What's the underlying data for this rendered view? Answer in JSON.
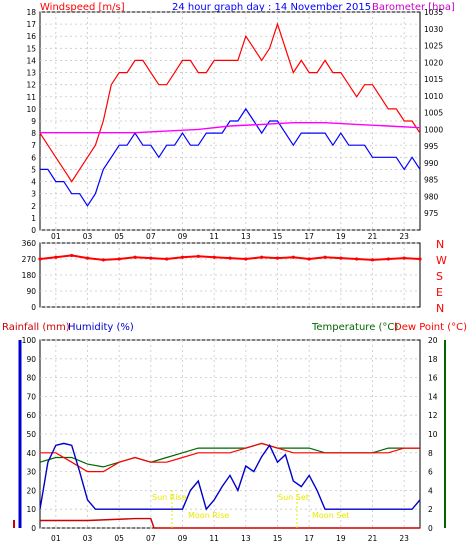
{
  "header": {
    "title": "24 hour graph day : 14 November 2015",
    "left_label": "Windspeed [m/s]",
    "right_label": "Barometer [hpa]"
  },
  "bottom_header": {
    "rainfall": "Rainfall (mm)",
    "humidity": "Humidity (%)",
    "temperature": "Temperature (°C)",
    "dewpoint": "Dew Point (°C)"
  },
  "compass": [
    "N",
    "W",
    "S",
    "E",
    "N"
  ],
  "annotations": {
    "sun_rise": "Sun Rise",
    "moon_rise": "Moon Rise",
    "sun_set": "Sun Set",
    "moon_set": "Moon Set"
  },
  "colors": {
    "wind": "#ff0000",
    "gust_avg": "#0000ff",
    "barometer": "#ff00ff",
    "direction": "#ff0000",
    "rain": "#cc0000",
    "humidity": "#0000cc",
    "temperature": "#006600",
    "dewpoint": "#ff0000",
    "note": "#e8e800"
  },
  "chart_data": [
    {
      "type": "line",
      "title": "24 hour graph day : 14 November 2015",
      "ylabel": "Windspeed [m/s]",
      "y2label": "Barometer [hpa]",
      "x_ticks": [
        "01",
        "03",
        "05",
        "07",
        "09",
        "11",
        "13",
        "15",
        "17",
        "19",
        "21",
        "23"
      ],
      "xlim": [
        0,
        24
      ],
      "ylim": [
        0,
        18
      ],
      "y_ticks": [
        0,
        1,
        2,
        3,
        4,
        5,
        6,
        7,
        8,
        9,
        10,
        11,
        12,
        13,
        14,
        15,
        16,
        17,
        18
      ],
      "y2lim": [
        970,
        1035
      ],
      "y2_ticks": [
        975,
        980,
        985,
        990,
        995,
        1000,
        1005,
        1010,
        1015,
        1020,
        1025,
        1030,
        1035
      ],
      "series": [
        {
          "key": "gust",
          "x": [
            0,
            0.5,
            1,
            1.5,
            2,
            2.5,
            3,
            3.5,
            4,
            4.5,
            5,
            5.5,
            6,
            6.5,
            7,
            7.5,
            8,
            8.5,
            9,
            9.5,
            10,
            10.5,
            11,
            11.5,
            12,
            12.5,
            13,
            13.5,
            14,
            14.5,
            15,
            15.5,
            16,
            16.5,
            17,
            17.5,
            18,
            18.5,
            19,
            19.5,
            20,
            20.5,
            21,
            21.5,
            22,
            22.5,
            23,
            23.5,
            24
          ],
          "y": [
            8,
            7,
            6,
            5,
            4,
            5,
            6,
            7,
            9,
            12,
            13,
            13,
            14,
            14,
            13,
            12,
            12,
            13,
            14,
            14,
            13,
            13,
            14,
            14,
            14,
            14,
            16,
            15,
            14,
            15,
            17,
            15,
            13,
            14,
            13,
            13,
            14,
            13,
            13,
            12,
            11,
            12,
            12,
            11,
            10,
            10,
            9,
            9,
            8
          ]
        },
        {
          "key": "average",
          "x": [
            0,
            0.5,
            1,
            1.5,
            2,
            2.5,
            3,
            3.5,
            4,
            4.5,
            5,
            5.5,
            6,
            6.5,
            7,
            7.5,
            8,
            8.5,
            9,
            9.5,
            10,
            10.5,
            11,
            11.5,
            12,
            12.5,
            13,
            13.5,
            14,
            14.5,
            15,
            15.5,
            16,
            16.5,
            17,
            17.5,
            18,
            18.5,
            19,
            19.5,
            20,
            20.5,
            21,
            21.5,
            22,
            22.5,
            23,
            23.5,
            24
          ],
          "y": [
            5,
            5,
            4,
            4,
            3,
            3,
            2,
            3,
            5,
            6,
            7,
            7,
            8,
            7,
            7,
            6,
            7,
            7,
            8,
            7,
            7,
            8,
            8,
            8,
            9,
            9,
            10,
            9,
            8,
            9,
            9,
            8,
            7,
            8,
            8,
            8,
            8,
            7,
            8,
            7,
            7,
            7,
            6,
            6,
            6,
            6,
            5,
            6,
            5
          ]
        },
        {
          "key": "barometer",
          "axis": "y2",
          "x": [
            0,
            2,
            4,
            6,
            8,
            10,
            12,
            14,
            16,
            18,
            20,
            22,
            24
          ],
          "y": [
            999,
            999,
            999,
            999,
            999.5,
            1000,
            1001,
            1001.5,
            1002,
            1002,
            1001.5,
            1001,
            1000.5
          ]
        }
      ]
    },
    {
      "type": "scatter",
      "title": "",
      "ylabel": "",
      "xlim": [
        0,
        24
      ],
      "ylim": [
        0,
        360
      ],
      "y_ticks": [
        0,
        90,
        180,
        270,
        360
      ],
      "series": [
        {
          "key": "direction",
          "x": [
            0,
            1,
            2,
            3,
            4,
            5,
            6,
            7,
            8,
            9,
            10,
            11,
            12,
            13,
            14,
            15,
            16,
            17,
            18,
            19,
            20,
            21,
            22,
            23,
            24
          ],
          "y": [
            270,
            280,
            290,
            275,
            265,
            270,
            280,
            275,
            270,
            280,
            285,
            280,
            275,
            270,
            280,
            275,
            280,
            270,
            280,
            275,
            270,
            265,
            270,
            275,
            270
          ]
        }
      ]
    },
    {
      "type": "line",
      "title": "",
      "xlim": [
        0,
        24
      ],
      "ylim": [
        0,
        100
      ],
      "y_ticks": [
        0,
        10,
        20,
        30,
        40,
        50,
        60,
        70,
        80,
        90,
        100
      ],
      "y2lim": [
        0,
        20
      ],
      "y2_ticks": [
        0,
        2,
        4,
        6,
        8,
        10,
        12,
        14,
        16,
        18,
        20
      ],
      "series": [
        {
          "key": "humidity",
          "x": [
            0,
            0.5,
            1,
            1.5,
            2,
            2.5,
            3,
            3.5,
            4,
            4.5,
            5,
            5.5,
            6,
            6.5,
            7,
            7.5,
            8,
            8.5,
            9,
            9.5,
            10,
            10.5,
            11,
            11.5,
            12,
            12.5,
            13,
            13.5,
            14,
            14.5,
            15,
            15.5,
            16,
            16.5,
            17,
            17.5,
            18,
            18.5,
            19,
            19.5,
            20,
            20.5,
            21,
            21.5,
            22,
            22.5,
            23,
            23.5,
            24
          ],
          "y": [
            10,
            35,
            44,
            45,
            44,
            30,
            15,
            10,
            10,
            10,
            10,
            10,
            10,
            10,
            10,
            10,
            10,
            10,
            10,
            20,
            25,
            10,
            15,
            22,
            28,
            20,
            33,
            30,
            38,
            44,
            35,
            39,
            25,
            22,
            28,
            20,
            10,
            10,
            10,
            10,
            10,
            10,
            10,
            10,
            10,
            10,
            10,
            10,
            15
          ]
        },
        {
          "key": "temperature",
          "axis": "y2",
          "x": [
            0,
            1,
            2,
            3,
            4,
            5,
            6,
            7,
            8,
            9,
            10,
            11,
            12,
            13,
            14,
            15,
            16,
            17,
            18,
            19,
            20,
            21,
            22,
            23,
            24
          ],
          "y": [
            7,
            7.5,
            7.5,
            6.8,
            6.5,
            7,
            7.5,
            7,
            7.5,
            8,
            8.5,
            8.5,
            8.5,
            8.5,
            9,
            8.5,
            8.5,
            8.5,
            8,
            8,
            8,
            8,
            8.5,
            8.5,
            8.5
          ]
        },
        {
          "key": "dewpoint",
          "axis": "y2",
          "x": [
            0,
            1,
            2,
            3,
            4,
            5,
            6,
            7,
            8,
            9,
            10,
            11,
            12,
            13,
            14,
            15,
            16,
            17,
            18,
            19,
            20,
            21,
            22,
            23,
            24
          ],
          "y": [
            8,
            8,
            7,
            6,
            6,
            7,
            7.5,
            7,
            7,
            7.5,
            8,
            8,
            8,
            8.5,
            9,
            8.5,
            8,
            8,
            8,
            8,
            8,
            8,
            8,
            8.5,
            8.5
          ]
        },
        {
          "key": "rainfall",
          "x": [
            0,
            3,
            6,
            7,
            7.2,
            24
          ],
          "y": [
            0.8,
            0.8,
            1,
            1,
            0,
            0
          ],
          "y_axis_value_scale": "mm"
        }
      ]
    }
  ]
}
